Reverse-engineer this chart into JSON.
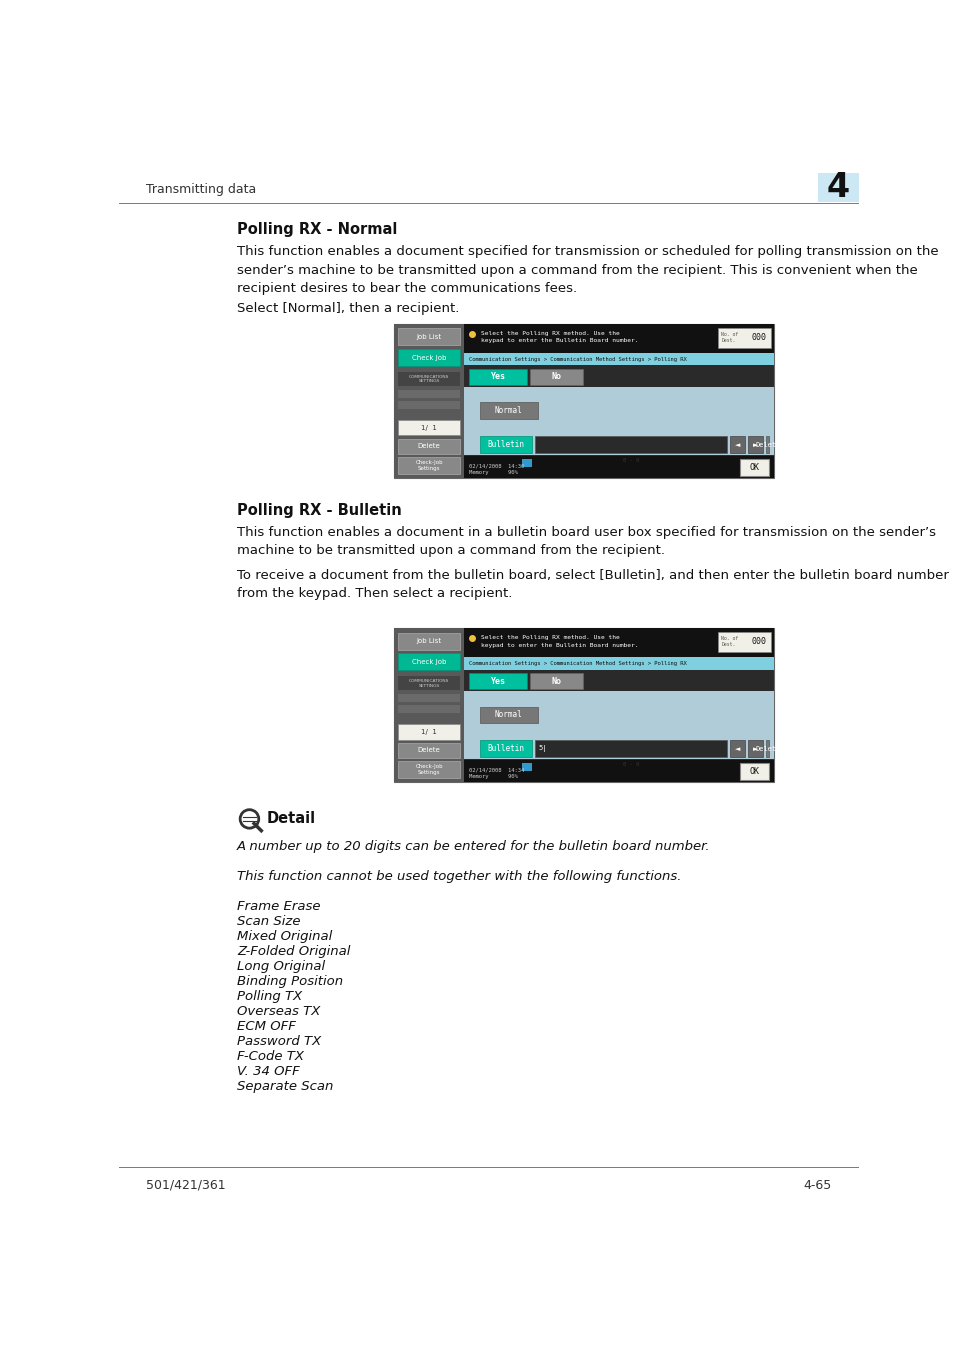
{
  "page_bg": "#ffffff",
  "header_text": "Transmitting data",
  "header_chapter": "4",
  "header_chapter_bg": "#cce8f4",
  "header_line_color": "#1a9fd4",
  "footer_left": "501/421/361",
  "footer_right": "4-65",
  "footer_line_color": "#1a9fd4",
  "section1_title": "Polling RX - Normal",
  "section1_para1": "This function enables a document specified for transmission or scheduled for polling transmission on the\nsender’s machine to be transmitted upon a command from the recipient. This is convenient when the\nrecipient desires to bear the communications fees.",
  "section1_para2": "Select [Normal], then a recipient.",
  "section2_title": "Polling RX - Bulletin",
  "section2_para1": "This function enables a document in a bulletin board user box specified for transmission on the sender’s\nmachine to be transmitted upon a command from the recipient.",
  "section2_para2": "To receive a document from the bulletin board, select [Bulletin], and then enter the bulletin board number\nfrom the keypad. Then select a recipient.",
  "detail_lines": [
    "A number up to 20 digits can be entered for the bulletin board number.",
    "",
    "This function cannot be used together with the following functions.",
    "",
    "Frame Erase",
    "Scan Size",
    "Mixed Original",
    "Z-Folded Original",
    "Long Original",
    "Binding Position",
    "Polling TX",
    "Overseas TX",
    "ECM OFF",
    "Password TX",
    "F-Code TX",
    "V. 34 OFF",
    "Separate Scan"
  ]
}
